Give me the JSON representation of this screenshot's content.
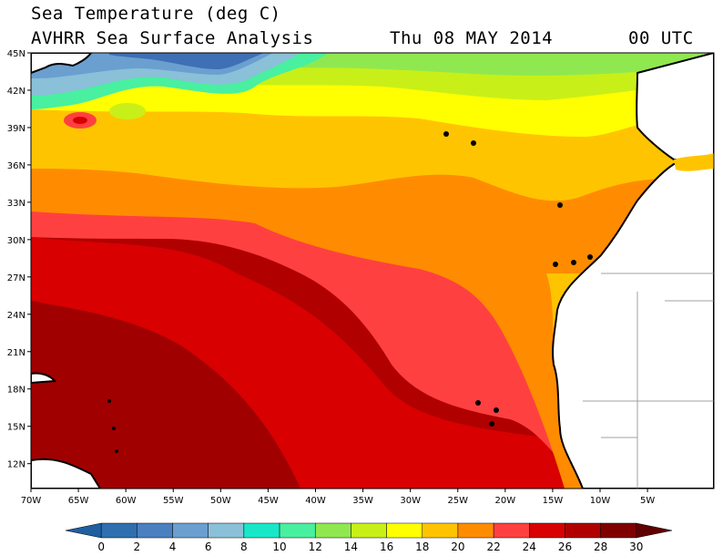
{
  "header": {
    "title": "Sea Temperature (deg C)",
    "subtitle": "AVHRR Sea Surface Analysis",
    "date": "Thu 08 MAY 2014",
    "time": "00 UTC"
  },
  "map": {
    "lon_range": [
      -70,
      2
    ],
    "lat_range": [
      10,
      45
    ],
    "lat_ticks": [
      "45N",
      "42N",
      "39N",
      "36N",
      "33N",
      "30N",
      "27N",
      "24N",
      "21N",
      "18N",
      "15N",
      "12N"
    ],
    "lat_values": [
      45,
      42,
      39,
      36,
      33,
      30,
      27,
      24,
      21,
      18,
      15,
      12
    ],
    "lon_ticks": [
      "70W",
      "65W",
      "60W",
      "55W",
      "50W",
      "45W",
      "40W",
      "35W",
      "30W",
      "25W",
      "20W",
      "15W",
      "10W",
      "5W"
    ],
    "lon_values": [
      -70,
      -65,
      -60,
      -55,
      -50,
      -45,
      -40,
      -35,
      -30,
      -25,
      -20,
      -15,
      -10,
      -5
    ],
    "land_color": "#ffffff",
    "coast_color": "#000000",
    "border_color": "#a0a0a0"
  },
  "colorbar": {
    "labels": [
      "0",
      "2",
      "4",
      "6",
      "8",
      "10",
      "12",
      "14",
      "16",
      "18",
      "20",
      "22",
      "24",
      "26",
      "28",
      "30"
    ],
    "colors": [
      "#1f5fa0",
      "#2f6fb0",
      "#4a7fc0",
      "#6a9fd0",
      "#8ac0d8",
      "#18e8c8",
      "#48f0a0",
      "#90e850",
      "#c8f018",
      "#ffff00",
      "#ffc400",
      "#ff8c00",
      "#ff4040",
      "#d80000",
      "#b00000",
      "#800000",
      "#600000"
    ]
  }
}
